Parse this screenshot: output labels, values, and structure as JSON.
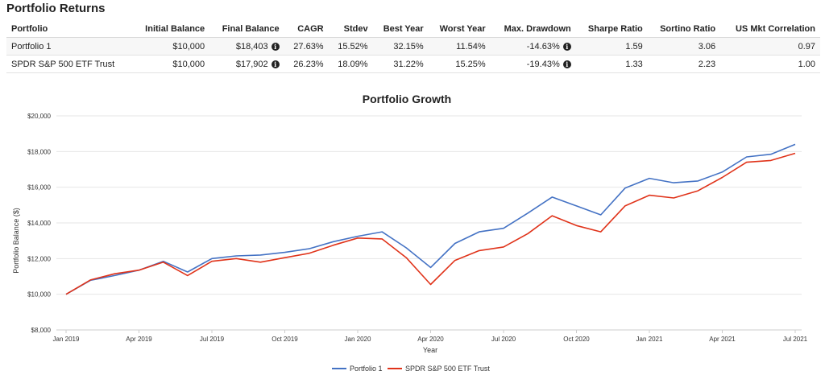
{
  "returns": {
    "title": "Portfolio Returns",
    "columns": [
      "Portfolio",
      "Initial Balance",
      "Final Balance",
      "CAGR",
      "Stdev",
      "Best Year",
      "Worst Year",
      "Max. Drawdown",
      "Sharpe Ratio",
      "Sortino Ratio",
      "US Mkt Correlation"
    ],
    "rows": [
      {
        "portfolio": "Portfolio 1",
        "initial": "$10,000",
        "final": "$18,403",
        "cagr": "27.63%",
        "stdev": "15.52%",
        "best": "32.15%",
        "worst": "11.54%",
        "drawdown": "-14.63%",
        "sharpe": "1.59",
        "sortino": "3.06",
        "corr": "0.97"
      },
      {
        "portfolio": "SPDR S&P 500 ETF Trust",
        "initial": "$10,000",
        "final": "$17,902",
        "cagr": "26.23%",
        "stdev": "18.09%",
        "best": "31.22%",
        "worst": "15.25%",
        "drawdown": "-19.43%",
        "sharpe": "1.33",
        "sortino": "2.23",
        "corr": "1.00"
      }
    ],
    "info_icon": "info-circle-icon"
  },
  "chart_data": {
    "type": "line",
    "title": "Portfolio Growth",
    "xlabel": "Year",
    "ylabel": "Portfolio Balance ($)",
    "x": [
      "2019-01",
      "2019-02",
      "2019-03",
      "2019-04",
      "2019-05",
      "2019-06",
      "2019-07",
      "2019-08",
      "2019-09",
      "2019-10",
      "2019-11",
      "2019-12",
      "2020-01",
      "2020-02",
      "2020-03",
      "2020-04",
      "2020-05",
      "2020-06",
      "2020-07",
      "2020-08",
      "2020-09",
      "2020-10",
      "2020-11",
      "2020-12",
      "2021-01",
      "2021-02",
      "2021-03",
      "2021-04",
      "2021-05",
      "2021-06",
      "2021-07"
    ],
    "x_tick_labels": [
      "Jan 2019",
      "Apr 2019",
      "Jul 2019",
      "Oct 2019",
      "Jan 2020",
      "Apr 2020",
      "Jul 2020",
      "Oct 2020",
      "Jan 2021",
      "Apr 2021",
      "Jul 2021"
    ],
    "y_tick_labels": [
      "$8,000",
      "$10,000",
      "$12,000",
      "$14,000",
      "$16,000",
      "$18,000",
      "$20,000"
    ],
    "ylim": [
      8000,
      20000
    ],
    "grid": true,
    "legend": "bottom-center",
    "series": [
      {
        "name": "Portfolio 1",
        "color": "#4472c4",
        "values": [
          10000,
          10780,
          11050,
          11350,
          11850,
          11250,
          12000,
          12150,
          12200,
          12350,
          12550,
          12950,
          13250,
          13500,
          12600,
          11500,
          12850,
          13500,
          13700,
          14550,
          15450,
          14950,
          14450,
          15950,
          16500,
          16250,
          16350,
          16850,
          17700,
          17850,
          18403
        ]
      },
      {
        "name": "SPDR S&P 500 ETF Trust",
        "color": "#e0331a",
        "values": [
          10000,
          10800,
          11150,
          11350,
          11800,
          11050,
          11850,
          12000,
          11800,
          12050,
          12300,
          12750,
          13150,
          13100,
          12050,
          10550,
          11900,
          12450,
          12650,
          13400,
          14400,
          13850,
          13500,
          14950,
          15550,
          15400,
          15800,
          16550,
          17400,
          17500,
          17902
        ]
      }
    ]
  }
}
